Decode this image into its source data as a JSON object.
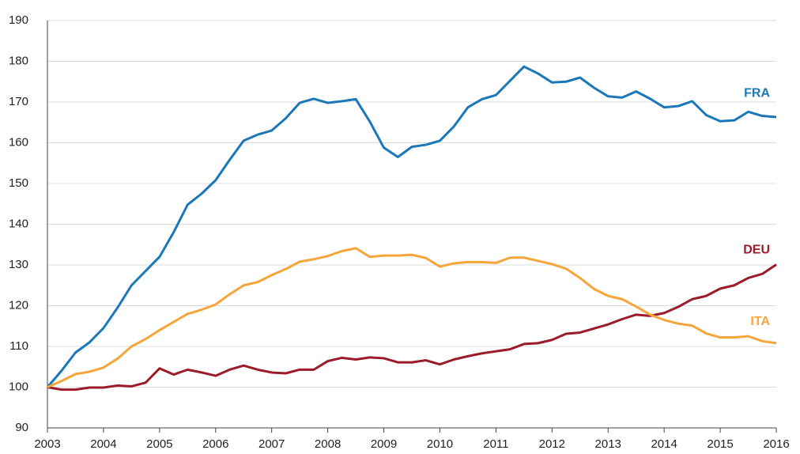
{
  "chart_data": {
    "type": "line",
    "x": [
      2003,
      2003.25,
      2003.5,
      2003.75,
      2004,
      2004.25,
      2004.5,
      2004.75,
      2005,
      2005.25,
      2005.5,
      2005.75,
      2006,
      2006.25,
      2006.5,
      2006.75,
      2007,
      2007.25,
      2007.5,
      2007.75,
      2008,
      2008.25,
      2008.5,
      2008.75,
      2009,
      2009.25,
      2009.5,
      2009.75,
      2010,
      2010.25,
      2010.5,
      2010.75,
      2011,
      2011.25,
      2011.5,
      2011.75,
      2012,
      2012.25,
      2012.5,
      2012.75,
      2013,
      2013.25,
      2013.5,
      2013.75,
      2014,
      2014.25,
      2014.5,
      2014.75,
      2015,
      2015.25,
      2015.5,
      2015.75,
      2016
    ],
    "series": [
      {
        "name": "FRA",
        "color": "#1a78b8",
        "values": [
          100,
          104,
          108.5,
          111,
          114.5,
          119.5,
          125,
          128.5,
          132,
          138,
          144.8,
          147.5,
          150.8,
          155.8,
          160.5,
          162,
          163,
          166,
          169.8,
          170.8,
          169.8,
          170.2,
          170.7,
          165.2,
          158.8,
          156.5,
          159,
          159.5,
          160.5,
          164,
          168.7,
          170.7,
          171.7,
          175.2,
          178.7,
          177,
          174.8,
          175,
          176,
          173.5,
          171.4,
          171.1,
          172.6,
          170.8,
          168.7,
          169,
          170.2,
          166.8,
          165.3,
          165.5,
          167.6,
          166.6,
          166.3
        ]
      },
      {
        "name": "DEU",
        "color": "#9b1b2a",
        "values": [
          100,
          99.4,
          99.4,
          99.9,
          99.9,
          100.4,
          100.2,
          101.1,
          104.6,
          103.1,
          104.3,
          103.6,
          102.8,
          104.3,
          105.3,
          104.3,
          103.6,
          103.4,
          104.3,
          104.3,
          106.4,
          107.2,
          106.8,
          107.3,
          107.1,
          106.1,
          106.1,
          106.6,
          105.6,
          106.8,
          107.6,
          108.3,
          108.8,
          109.3,
          110.6,
          110.8,
          111.6,
          113.1,
          113.4,
          114.4,
          115.4,
          116.7,
          117.8,
          117.5,
          118.2,
          119.7,
          121.6,
          122.4,
          124.2,
          125,
          126.8,
          127.8,
          130.1
        ]
      },
      {
        "name": "ITA",
        "color": "#f5a53a",
        "values": [
          100,
          101.5,
          103.2,
          103.8,
          104.8,
          107,
          110,
          111.8,
          114,
          116,
          118,
          119,
          120.3,
          122.8,
          125,
          125.8,
          127.5,
          129,
          130.8,
          131.4,
          132.2,
          133.4,
          134.1,
          132,
          132.3,
          132.3,
          132.5,
          131.7,
          129.6,
          130.4,
          130.7,
          130.7,
          130.5,
          131.8,
          131.8,
          131,
          130.2,
          129.1,
          126.8,
          124.1,
          122.4,
          121.6,
          119.8,
          117.8,
          116.5,
          115.6,
          115.1,
          113.2,
          112.2,
          112.2,
          112.5,
          111.3,
          110.8
        ]
      }
    ],
    "xlim": [
      2003,
      2016
    ],
    "xticks": [
      2003,
      2004,
      2005,
      2006,
      2007,
      2008,
      2009,
      2010,
      2011,
      2012,
      2013,
      2014,
      2015,
      2016
    ],
    "ylim": [
      90,
      190
    ],
    "yticks": [
      90,
      100,
      110,
      120,
      130,
      140,
      150,
      160,
      170,
      180,
      190
    ],
    "grid": true
  }
}
